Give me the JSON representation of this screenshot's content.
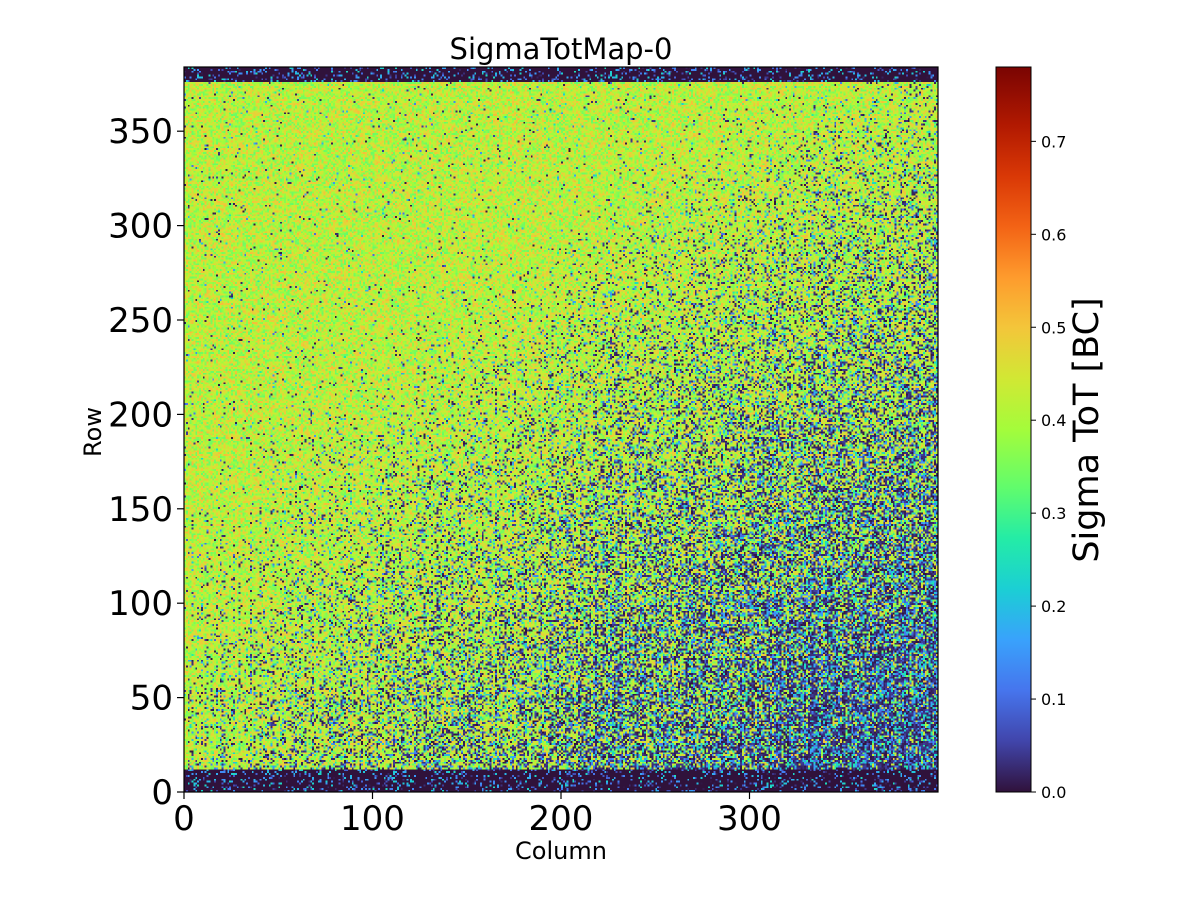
{
  "chart_data": {
    "type": "heatmap",
    "title": "SigmaTotMap-0",
    "xlabel": "Column",
    "ylabel": "Row",
    "xlim": [
      0,
      400
    ],
    "ylim": [
      0,
      384
    ],
    "x_ticks": [
      0,
      100,
      200,
      300
    ],
    "y_ticks": [
      0,
      50,
      100,
      150,
      200,
      250,
      300,
      350
    ],
    "x_tick_labels": [
      "0",
      "100",
      "200",
      "300"
    ],
    "y_tick_labels": [
      "0",
      "50",
      "100",
      "150",
      "200",
      "250",
      "300",
      "350"
    ],
    "colormap": "turbo",
    "colorbar": {
      "label": "Sigma ToT [BC]",
      "range": [
        0.0,
        0.78
      ],
      "ticks": [
        0.0,
        0.1,
        0.2,
        0.3,
        0.4,
        0.5,
        0.6,
        0.7
      ],
      "tick_labels": [
        "0.0",
        "0.1",
        "0.2",
        "0.3",
        "0.4",
        "0.5",
        "0.6",
        "0.7"
      ]
    },
    "grid": false,
    "approximate_structure": {
      "description_values": {
        "edge_rows_value": 0.0,
        "bottom_dark_rows": [
          0,
          12
        ],
        "top_dark_rows": [
          376,
          384
        ],
        "high_region_value": 0.45,
        "low_region_value": 0.05
      }
    }
  }
}
